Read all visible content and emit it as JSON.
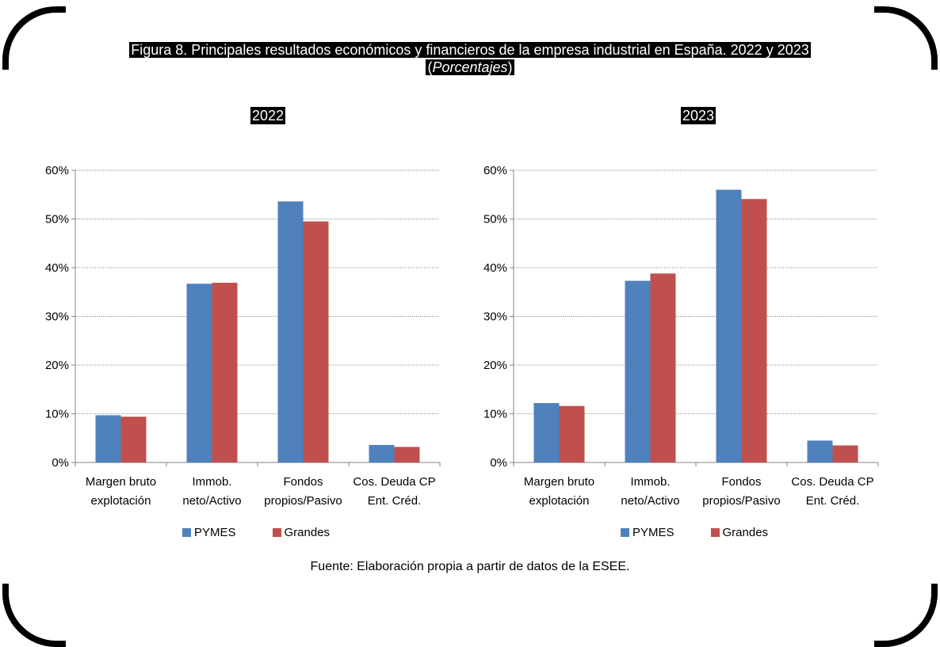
{
  "title": {
    "line1": "Figura 8. Principales resultados económicos y financieros de la empresa industrial en España. 2022 y 2023",
    "line2_open": "(",
    "line2_italic": "Porcentajes",
    "line2_close": ")"
  },
  "colors": {
    "PYMES": "#4F81BD",
    "Grandes": "#C0504D"
  },
  "legend": [
    "PYMES",
    "Grandes"
  ],
  "source": "Fuente: Elaboración propia a partir de datos de la ESEE.",
  "chart_data": [
    {
      "type": "bar",
      "title": "2022",
      "categories": [
        [
          "Margen bruto",
          "explotación"
        ],
        [
          "Immob.",
          "neto/Activo"
        ],
        [
          "Fondos",
          "propios/Pasivo"
        ],
        [
          "Cos. Deuda CP",
          "Ent. Créd."
        ]
      ],
      "series": [
        {
          "name": "PYMES",
          "values": [
            9.7,
            36.7,
            53.6,
            3.6
          ]
        },
        {
          "name": "Grandes",
          "values": [
            9.4,
            36.9,
            49.5,
            3.2
          ]
        }
      ],
      "ylim": [
        0,
        60
      ],
      "yticks": [
        "0%",
        "10%",
        "20%",
        "30%",
        "40%",
        "50%",
        "60%"
      ],
      "grid": true,
      "legend_position": "bottom"
    },
    {
      "type": "bar",
      "title": "2023",
      "categories": [
        [
          "Margen bruto",
          "explotación"
        ],
        [
          "Immob.",
          "neto/Activo"
        ],
        [
          "Fondos",
          "propios/Pasivo"
        ],
        [
          "Cos. Deuda CP",
          "Ent. Créd."
        ]
      ],
      "series": [
        {
          "name": "PYMES",
          "values": [
            12.2,
            37.3,
            56.0,
            4.5
          ]
        },
        {
          "name": "Grandes",
          "values": [
            11.6,
            38.8,
            54.1,
            3.5
          ]
        }
      ],
      "ylim": [
        0,
        60
      ],
      "yticks": [
        "0%",
        "10%",
        "20%",
        "30%",
        "40%",
        "50%",
        "60%"
      ],
      "grid": true,
      "legend_position": "bottom"
    }
  ]
}
